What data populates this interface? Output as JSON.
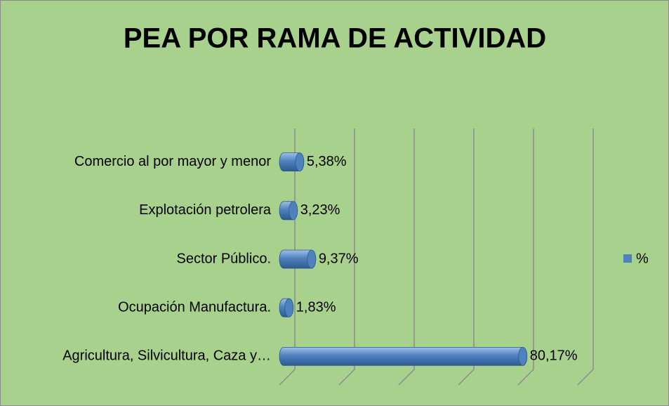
{
  "chart_data": {
    "type": "bar",
    "orientation": "horizontal",
    "title": "PEA POR RAMA DE ACTIVIDAD",
    "categories": [
      "Comercio al por mayor y menor",
      "Explotación petrolera",
      "Sector Público.",
      "Ocupación Manufactura.",
      "Agricultura, Silvicultura, Caza  y…"
    ],
    "series": [
      {
        "name": "%",
        "color": "#4f81bd",
        "values": [
          5.38,
          3.23,
          9.37,
          1.83,
          80.17
        ],
        "value_labels": [
          "5,38%",
          "3,23%",
          "9,37%",
          "1,83%",
          "80,17%"
        ]
      }
    ],
    "xlim": [
      0,
      100
    ],
    "xticks": [
      0,
      20,
      40,
      60,
      80,
      100
    ],
    "grid": true,
    "legend": "right"
  }
}
